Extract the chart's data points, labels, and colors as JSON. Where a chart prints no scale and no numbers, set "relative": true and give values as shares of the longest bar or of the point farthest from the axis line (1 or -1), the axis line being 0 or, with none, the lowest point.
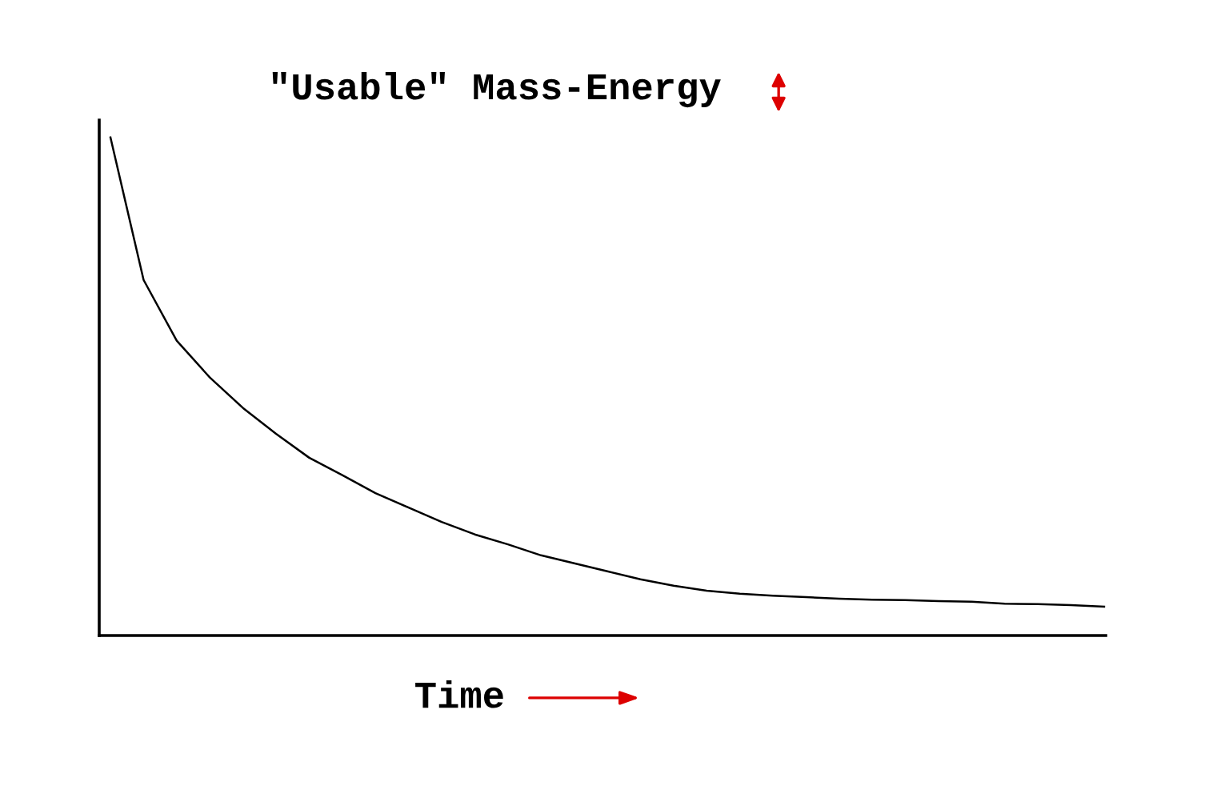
{
  "chart_data": {
    "type": "line",
    "relative": true,
    "ylabel": "\"Usable\" Mass-Energy",
    "xlabel": "Time",
    "categories": [
      null,
      null,
      null,
      null,
      null,
      null,
      null,
      null,
      null,
      null,
      null,
      null,
      null,
      null,
      null,
      null,
      null,
      null,
      null,
      null,
      null,
      null,
      null,
      null,
      null,
      null,
      null,
      null,
      null,
      null,
      null
    ],
    "series": [
      {
        "color": "#000000",
        "values": [
          1.0,
          0.714,
          0.592,
          0.518,
          0.457,
          0.405,
          0.357,
          0.322,
          0.286,
          0.257,
          0.228,
          0.203,
          0.183,
          0.161,
          0.145,
          0.129,
          0.113,
          0.1,
          0.09,
          0.084,
          0.08,
          0.077,
          0.074,
          0.072,
          0.071,
          0.069,
          0.068,
          0.064,
          0.063,
          0.061,
          0.058
        ]
      }
    ],
    "legend": false,
    "marker": "none",
    "line_style": "solid"
  }
}
